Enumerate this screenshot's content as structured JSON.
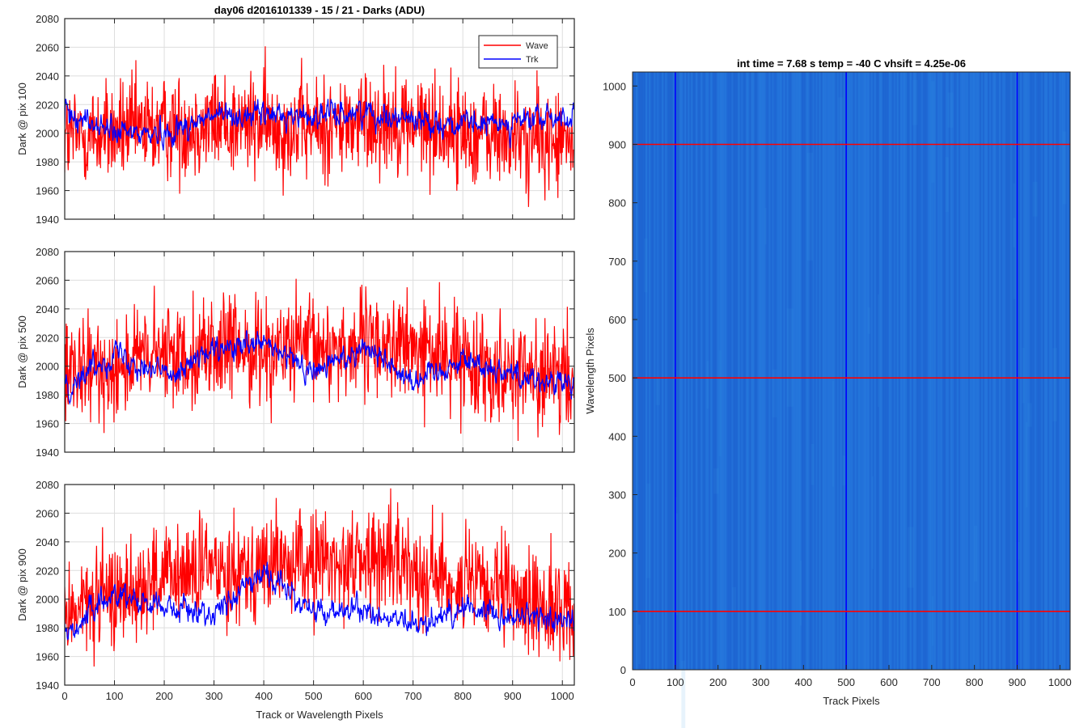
{
  "figure": {
    "colors": {
      "wave": "#ff0000",
      "trk": "#0000ff",
      "grid": "#dedede",
      "axis": "#262626",
      "image_base": "#1f6ad6"
    }
  },
  "chart_data": [
    {
      "type": "line",
      "title": "day06 d2016101339 - 15 / 21 - Darks (ADU)",
      "xlabel": "",
      "ylabel": "Dark @ pix 100",
      "xlim": [
        0,
        1024
      ],
      "ylim": [
        1940,
        2080
      ],
      "xticks": [
        0,
        100,
        200,
        300,
        400,
        500,
        600,
        700,
        800,
        900,
        1000
      ],
      "yticks": [
        1940,
        1960,
        1980,
        2000,
        2020,
        2040,
        2060,
        2080
      ],
      "show_xtick_labels": false,
      "grid": true,
      "legend": {
        "placement": "top-right",
        "entries": [
          "Wave",
          "Trk"
        ]
      },
      "series": [
        {
          "name": "Wave",
          "color": "#ff0000",
          "n": 1024,
          "mean": 2003,
          "noise": 18,
          "smooth": 0,
          "envelope": [
            [
              0,
              1997
            ],
            [
              300,
              2007
            ],
            [
              500,
              2003
            ],
            [
              650,
              2010
            ],
            [
              800,
              2000
            ],
            [
              1024,
              1992
            ]
          ]
        },
        {
          "name": "Trk",
          "color": "#0000ff",
          "n": 1024,
          "mean": 2005,
          "noise": 9,
          "smooth": 0.6,
          "envelope": [
            [
              0,
              2015
            ],
            [
              100,
              2000
            ],
            [
              200,
              2000
            ],
            [
              300,
              2012
            ],
            [
              400,
              2013
            ],
            [
              500,
              2012
            ],
            [
              600,
              2015
            ],
            [
              700,
              2010
            ],
            [
              800,
              2005
            ],
            [
              900,
              2008
            ],
            [
              1024,
              2012
            ]
          ]
        }
      ]
    },
    {
      "type": "line",
      "title": "",
      "xlabel": "",
      "ylabel": "Dark @ pix 500",
      "xlim": [
        0,
        1024
      ],
      "ylim": [
        1940,
        2080
      ],
      "xticks": [
        0,
        100,
        200,
        300,
        400,
        500,
        600,
        700,
        800,
        900,
        1000
      ],
      "yticks": [
        1940,
        1960,
        1980,
        2000,
        2020,
        2040,
        2060,
        2080
      ],
      "show_xtick_labels": false,
      "grid": true,
      "series": [
        {
          "name": "Wave",
          "color": "#ff0000",
          "n": 1024,
          "mean": 2005,
          "noise": 18,
          "smooth": 0,
          "envelope": [
            [
              0,
              1990
            ],
            [
              150,
              2005
            ],
            [
              300,
              2012
            ],
            [
              500,
              2012
            ],
            [
              650,
              2015
            ],
            [
              800,
              2005
            ],
            [
              1024,
              1988
            ]
          ]
        },
        {
          "name": "Trk",
          "color": "#0000ff",
          "n": 1024,
          "mean": 2000,
          "noise": 9,
          "smooth": 0.6,
          "envelope": [
            [
              0,
              1985
            ],
            [
              100,
              2010
            ],
            [
              200,
              1995
            ],
            [
              300,
              2010
            ],
            [
              400,
              2015
            ],
            [
              500,
              1995
            ],
            [
              600,
              2015
            ],
            [
              700,
              1990
            ],
            [
              800,
              2005
            ],
            [
              900,
              1995
            ],
            [
              1024,
              1985
            ]
          ]
        }
      ]
    },
    {
      "type": "line",
      "title": "",
      "xlabel": "Track or Wavelength Pixels",
      "ylabel": "Dark @ pix 900",
      "xlim": [
        0,
        1024
      ],
      "ylim": [
        1940,
        2080
      ],
      "xticks": [
        0,
        100,
        200,
        300,
        400,
        500,
        600,
        700,
        800,
        900,
        1000
      ],
      "yticks": [
        1940,
        1960,
        1980,
        2000,
        2020,
        2040,
        2060,
        2080
      ],
      "show_xtick_labels": true,
      "grid": true,
      "series": [
        {
          "name": "Wave",
          "color": "#ff0000",
          "n": 1024,
          "mean": 2015,
          "noise": 18,
          "smooth": 0,
          "envelope": [
            [
              0,
              1990
            ],
            [
              150,
              2010
            ],
            [
              300,
              2022
            ],
            [
              500,
              2025
            ],
            [
              650,
              2028
            ],
            [
              800,
              2010
            ],
            [
              1024,
              1990
            ]
          ]
        },
        {
          "name": "Trk",
          "color": "#0000ff",
          "n": 1024,
          "mean": 1995,
          "noise": 9,
          "smooth": 0.6,
          "envelope": [
            [
              0,
              1975
            ],
            [
              100,
              2005
            ],
            [
              200,
              1995
            ],
            [
              300,
              1990
            ],
            [
              400,
              2020
            ],
            [
              500,
              1990
            ],
            [
              600,
              1992
            ],
            [
              700,
              1980
            ],
            [
              800,
              1995
            ],
            [
              900,
              1988
            ],
            [
              1024,
              1985
            ]
          ]
        }
      ]
    },
    {
      "type": "heatmap",
      "title": "int time = 7.68 s    temp = -40 C    vhsift = 4.25e-06",
      "xlabel": "Track Pixels",
      "ylabel": "Wavelength Pixels",
      "xlim": [
        0,
        1024
      ],
      "ylim": [
        0,
        1024
      ],
      "xticks": [
        0,
        100,
        200,
        300,
        400,
        500,
        600,
        700,
        800,
        900,
        1000
      ],
      "yticks": [
        0,
        100,
        200,
        300,
        400,
        500,
        600,
        700,
        800,
        900,
        1000
      ],
      "grid": false,
      "vertical_markers": {
        "color": "#0000ff",
        "x": [
          100,
          500,
          900
        ]
      },
      "horizontal_markers": {
        "color": "#ff0000",
        "y": [
          100,
          500,
          900
        ]
      }
    }
  ]
}
